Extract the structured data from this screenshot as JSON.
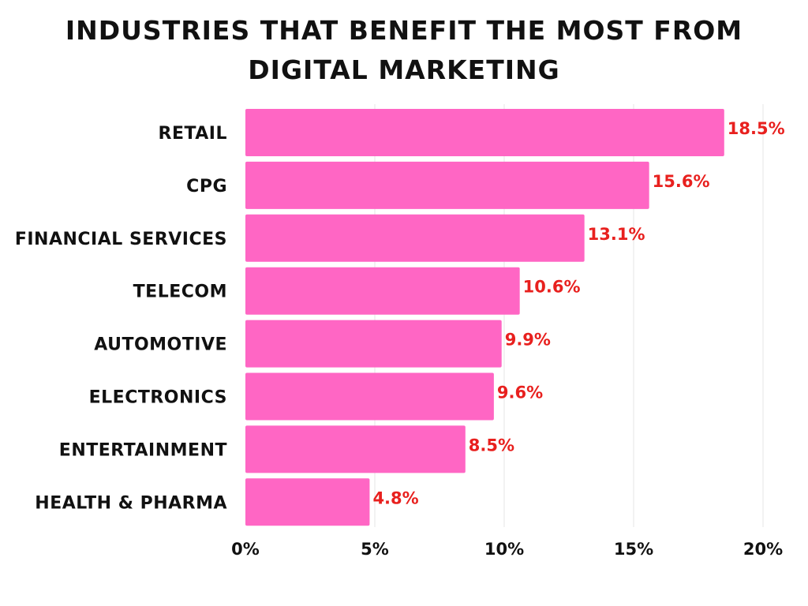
{
  "chart_data": {
    "type": "bar",
    "orientation": "horizontal",
    "title": "Industries That Benefit the Most From Digital Marketing",
    "categories": [
      "Retail",
      "CPG",
      "Financial Services",
      "Telecom",
      "Automotive",
      "Electronics",
      "Entertainment",
      "Health & Pharma"
    ],
    "values": [
      18.5,
      15.6,
      13.1,
      10.6,
      9.9,
      9.6,
      8.5,
      4.8
    ],
    "data_labels": [
      "18.5%",
      "15.6%",
      "13.1%",
      "10.6%",
      "9.9%",
      "9.6%",
      "8.5%",
      "4.8%"
    ],
    "xlim": [
      0,
      20
    ],
    "xticks": [
      0,
      5,
      10,
      15,
      20
    ],
    "xtick_labels": [
      "0%",
      "5%",
      "10%",
      "15%",
      "20%"
    ],
    "xlabel": "",
    "ylabel": "",
    "grid": "vertical",
    "colors": {
      "bar": "#ff66c4",
      "label": "#e8201e",
      "grid": "#e6e6e6"
    }
  }
}
